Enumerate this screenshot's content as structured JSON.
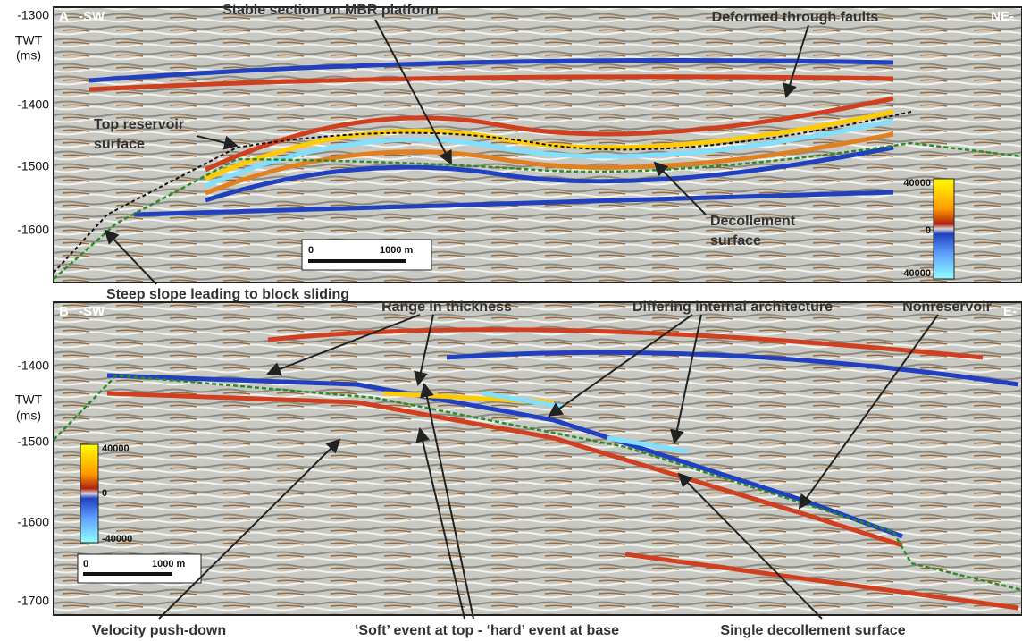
{
  "panels": [
    {
      "label": "A",
      "left_dir": "-SW",
      "right_dir": "NE-",
      "axis_ticks": [
        "-1300",
        "-1400",
        "-1500",
        "-1600"
      ],
      "axis_title": [
        "TWT",
        "(ms)"
      ],
      "colorbar": [
        "40000",
        "0",
        "-40000"
      ],
      "scale": [
        "0",
        "1000 m"
      ],
      "annotations": [
        "Stable section on MBR platform",
        "Deformed through faults",
        "Top reservoir",
        "surface",
        "Decollement",
        "surface",
        "Steep slope leading to block sliding"
      ]
    },
    {
      "label": "B",
      "left_dir": "-SW",
      "right_dir": "E-",
      "axis_ticks": [
        "-1400",
        "-1500",
        "-1600",
        "-1700"
      ],
      "axis_title": [
        "TWT",
        "(ms)"
      ],
      "colorbar": [
        "40000",
        "0",
        "-40000"
      ],
      "scale": [
        "0",
        "1000 m"
      ],
      "annotations": [
        "Range in thickness",
        "Differing internal architecture",
        "Nonreservoir",
        "Velocity push-down",
        "‘Soft’ event at top - ‘hard’ event at base",
        "Single decollement surface"
      ]
    }
  ]
}
